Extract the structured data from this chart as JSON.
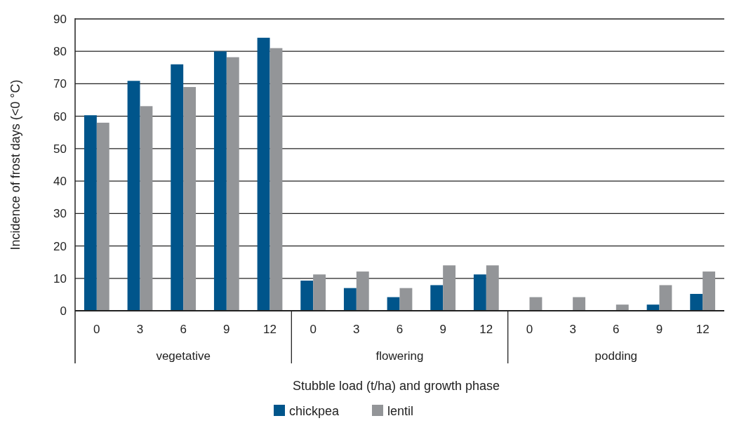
{
  "chart_data": {
    "type": "bar",
    "xlabel": "Stubble load (t/ha) and growth phase",
    "ylabel": "Incidence of frost days (<0 °C)",
    "categories": [
      "0",
      "3",
      "6",
      "9",
      "12",
      "0",
      "3",
      "6",
      "9",
      "12",
      "0",
      "3",
      "6",
      "9",
      "12"
    ],
    "series": [
      {
        "name": "chickpea",
        "color": "#00558b",
        "values": [
          60.3,
          70.9,
          76,
          80,
          84.2,
          9.3,
          7,
          4.2,
          7.9,
          11.2,
          0,
          0,
          0,
          1.9,
          5.2
        ]
      },
      {
        "name": "lentil",
        "color": "#939598",
        "values": [
          58,
          63.1,
          69,
          78.2,
          81,
          11.2,
          12.1,
          7,
          14,
          14,
          4.2,
          4.2,
          1.9,
          7.9,
          12.1
        ]
      }
    ],
    "annotations": [
      "vegetative",
      "flowering",
      "podding"
    ],
    "ylim": [
      0,
      90
    ],
    "yticks": [
      0,
      10,
      20,
      30,
      40,
      50,
      60,
      70,
      80,
      90
    ],
    "grid": "y",
    "legend": "bottom"
  }
}
